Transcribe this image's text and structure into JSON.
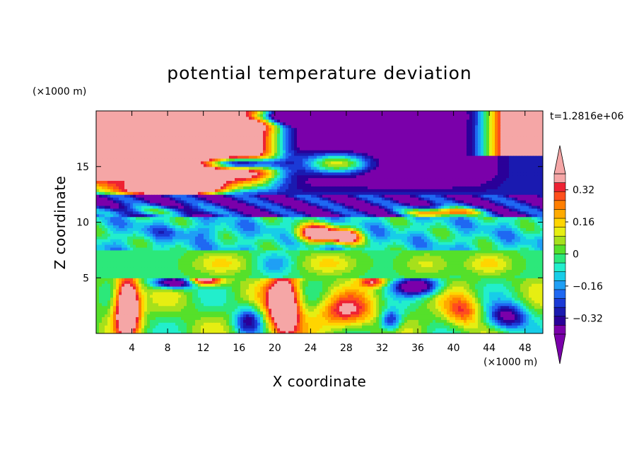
{
  "chart_data": {
    "type": "heatmap",
    "title": "potential temperature deviation",
    "xlabel": "X coordinate",
    "ylabel": "Z coordinate",
    "x_unit": "(×1000 m)",
    "y_unit": "(×1000 m)",
    "time_label": "t=1.2816e+06",
    "xlim": [
      0,
      50
    ],
    "ylim": [
      0,
      20
    ],
    "x_ticks": [
      4,
      8,
      12,
      16,
      20,
      24,
      28,
      32,
      36,
      40,
      44,
      48
    ],
    "y_ticks": [
      5,
      10,
      15
    ],
    "colorbar": {
      "levels": [
        -0.4,
        -0.36,
        -0.32,
        -0.28,
        -0.24,
        -0.2,
        -0.16,
        -0.12,
        -0.08,
        -0.04,
        0,
        0.04,
        0.08,
        0.12,
        0.16,
        0.2,
        0.24,
        0.28,
        0.32,
        0.36,
        0.4
      ],
      "tick_labels": [
        {
          "value": 0.32,
          "label": "0.32"
        },
        {
          "value": 0.16,
          "label": "0.16"
        },
        {
          "value": 0,
          "label": "0"
        },
        {
          "value": -0.16,
          "label": "−0.16"
        },
        {
          "value": -0.32,
          "label": "−0.32"
        }
      ],
      "colors": [
        "#7a00aa",
        "#2a0099",
        "#1a1ab0",
        "#1b3ad6",
        "#1f68f2",
        "#1f9ff5",
        "#17cde8",
        "#22eecc",
        "#2ce87a",
        "#55e02a",
        "#a6e01c",
        "#e6ee12",
        "#ffd500",
        "#ffaa00",
        "#ff7f00",
        "#ff4f1c",
        "#ee2233",
        "#f5a6a6"
      ],
      "under_color": "#7a00aa",
      "over_color": "#f5a6a6"
    },
    "regions_description": "deviation field; high (salmon) at upper left/right, low (purple) upper middle, banded mid levels, convective plumes near surface"
  }
}
